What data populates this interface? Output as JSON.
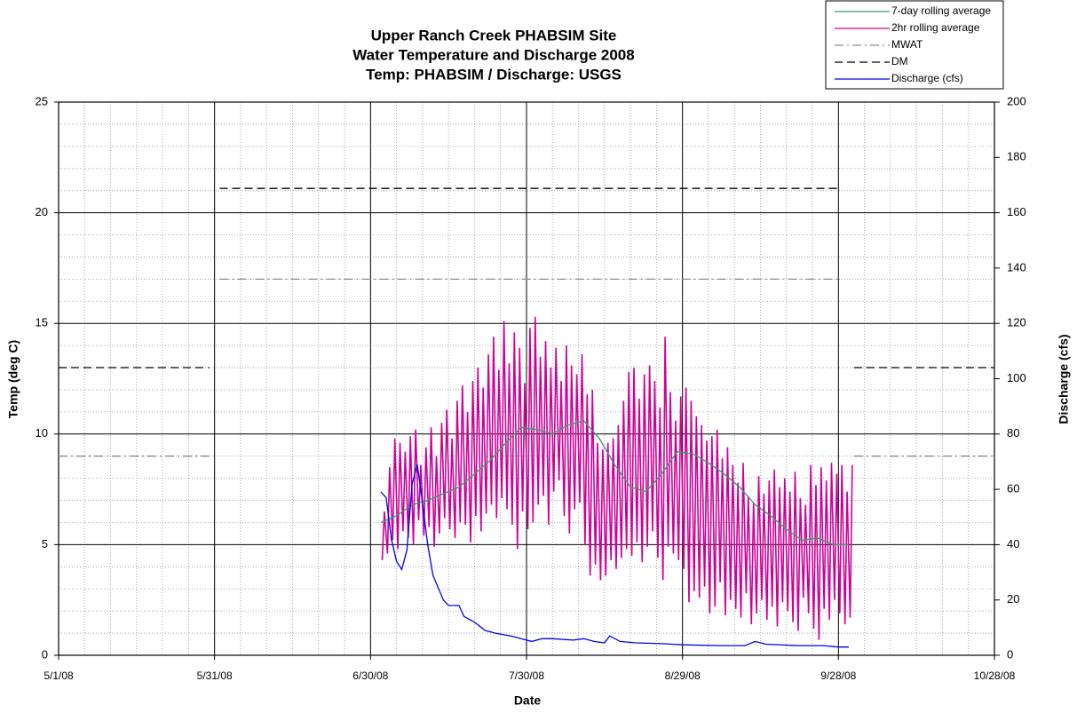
{
  "chart_data": {
    "type": "line",
    "title": [
      "Upper Ranch Creek PHABSIM Site",
      "Water Temperature and Discharge 2008",
      "Temp: PHABSIM / Discharge: USGS"
    ],
    "xlabel": "Date",
    "ylabel": "Temp (deg C)",
    "y2label": "Discharge (cfs)",
    "xlim": [
      "5/1/08",
      "10/28/08"
    ],
    "xticks": [
      "5/1/08",
      "5/31/08",
      "6/30/08",
      "7/30/08",
      "8/29/08",
      "9/28/08",
      "10/28/08"
    ],
    "ylim": [
      0,
      25
    ],
    "yticks": [
      0,
      5,
      10,
      15,
      20,
      25
    ],
    "y2lim": [
      0,
      200
    ],
    "y2ticks": [
      0,
      20,
      40,
      60,
      80,
      100,
      120,
      140,
      160,
      180,
      200
    ],
    "grid": true,
    "legend": "top-right",
    "series": [
      {
        "name": "7-day rolling average",
        "color": "#3a9a6a",
        "dash": "solid",
        "x": [
          "7/2/08",
          "7/5/08",
          "7/8/08",
          "7/11/08",
          "7/14/08",
          "7/17/08",
          "7/20/08",
          "7/23/08",
          "7/26/08",
          "7/29/08",
          "8/1/08",
          "8/4/08",
          "8/7/08",
          "8/10/08",
          "8/13/08",
          "8/16/08",
          "8/19/08",
          "8/22/08",
          "8/25/08",
          "8/28/08",
          "8/31/08",
          "9/3/08",
          "9/6/08",
          "9/9/08",
          "9/12/08",
          "9/15/08",
          "9/18/08",
          "9/21/08",
          "9/24/08",
          "9/27/08",
          "9/30/08"
        ],
        "values": [
          6.0,
          6.3,
          6.8,
          7.0,
          7.3,
          7.6,
          8.2,
          8.8,
          9.6,
          10.3,
          10.2,
          10.0,
          10.4,
          10.6,
          9.8,
          8.6,
          7.6,
          7.4,
          8.2,
          9.2,
          9.1,
          8.7,
          8.2,
          7.6,
          6.8,
          6.3,
          5.7,
          5.2,
          5.3,
          5.0,
          5.0
        ]
      },
      {
        "name": "2hr rolling average",
        "color": "#cc0099",
        "dash": "solid",
        "x": [
          "7/2/08 06:00",
          "7/2/08 16:00",
          "7/3/08 06:00",
          "7/3/08 16:00",
          "7/4/08 06:00",
          "7/4/08 16:00",
          "7/5/08 06:00",
          "7/5/08 16:00",
          "7/6/08 06:00",
          "7/6/08 16:00",
          "7/7/08 06:00",
          "7/7/08 16:00",
          "7/8/08 06:00",
          "7/8/08 16:00",
          "7/9/08 06:00",
          "7/9/08 16:00",
          "7/10/08 06:00",
          "7/10/08 16:00",
          "7/11/08 06:00",
          "7/11/08 16:00",
          "7/12/08 06:00",
          "7/12/08 16:00",
          "7/13/08 06:00",
          "7/13/08 16:00",
          "7/14/08 06:00",
          "7/14/08 16:00",
          "7/15/08 06:00",
          "7/15/08 16:00",
          "7/16/08 06:00",
          "7/16/08 16:00",
          "7/17/08 06:00",
          "7/17/08 16:00",
          "7/18/08 06:00",
          "7/18/08 16:00",
          "7/19/08 06:00",
          "7/19/08 16:00",
          "7/20/08 06:00",
          "7/20/08 16:00",
          "7/21/08 06:00",
          "7/21/08 16:00",
          "7/22/08 06:00",
          "7/22/08 16:00",
          "7/23/08 06:00",
          "7/23/08 16:00",
          "7/24/08 06:00",
          "7/24/08 16:00",
          "7/25/08 06:00",
          "7/25/08 16:00",
          "7/26/08 06:00",
          "7/26/08 16:00",
          "7/27/08 06:00",
          "7/27/08 16:00",
          "7/28/08 06:00",
          "7/28/08 16:00",
          "7/29/08 06:00",
          "7/29/08 16:00",
          "7/30/08 06:00",
          "7/30/08 16:00",
          "7/31/08 06:00",
          "7/31/08 16:00",
          "8/1/08 06:00",
          "8/1/08 16:00",
          "8/2/08 06:00",
          "8/2/08 16:00",
          "8/3/08 06:00",
          "8/3/08 16:00",
          "8/4/08 06:00",
          "8/4/08 16:00",
          "8/5/08 06:00",
          "8/5/08 16:00",
          "8/6/08 06:00",
          "8/6/08 16:00",
          "8/7/08 06:00",
          "8/7/08 16:00",
          "8/8/08 06:00",
          "8/8/08 16:00",
          "8/9/08 06:00",
          "8/9/08 16:00",
          "8/10/08 06:00",
          "8/10/08 16:00",
          "8/11/08 06:00",
          "8/11/08 16:00",
          "8/12/08 06:00",
          "8/12/08 16:00",
          "8/13/08 06:00",
          "8/13/08 16:00",
          "8/14/08 06:00",
          "8/14/08 16:00",
          "8/15/08 06:00",
          "8/15/08 16:00",
          "8/16/08 06:00",
          "8/16/08 16:00",
          "8/17/08 06:00",
          "8/17/08 16:00",
          "8/18/08 06:00",
          "8/18/08 16:00",
          "8/19/08 06:00",
          "8/19/08 16:00",
          "8/20/08 06:00",
          "8/20/08 16:00",
          "8/21/08 06:00",
          "8/21/08 16:00",
          "8/22/08 06:00",
          "8/22/08 16:00",
          "8/23/08 06:00",
          "8/23/08 16:00",
          "8/24/08 06:00",
          "8/24/08 16:00",
          "8/25/08 06:00",
          "8/25/08 16:00",
          "8/26/08 06:00",
          "8/26/08 16:00",
          "8/27/08 06:00",
          "8/27/08 16:00",
          "8/28/08 06:00",
          "8/28/08 16:00",
          "8/29/08 06:00",
          "8/29/08 16:00",
          "8/30/08 06:00",
          "8/30/08 16:00",
          "8/31/08 06:00",
          "8/31/08 16:00",
          "9/1/08 06:00",
          "9/1/08 16:00",
          "9/2/08 06:00",
          "9/2/08 16:00",
          "9/3/08 06:00",
          "9/3/08 16:00",
          "9/4/08 06:00",
          "9/4/08 16:00",
          "9/5/08 06:00",
          "9/5/08 16:00",
          "9/6/08 06:00",
          "9/6/08 16:00",
          "9/7/08 06:00",
          "9/7/08 16:00",
          "9/8/08 06:00",
          "9/8/08 16:00",
          "9/9/08 06:00",
          "9/9/08 16:00",
          "9/10/08 06:00",
          "9/10/08 16:00",
          "9/11/08 06:00",
          "9/11/08 16:00",
          "9/12/08 06:00",
          "9/12/08 16:00",
          "9/13/08 06:00",
          "9/13/08 16:00",
          "9/14/08 06:00",
          "9/14/08 16:00",
          "9/15/08 06:00",
          "9/15/08 16:00",
          "9/16/08 06:00",
          "9/16/08 16:00",
          "9/17/08 06:00",
          "9/17/08 16:00",
          "9/18/08 06:00",
          "9/18/08 16:00",
          "9/19/08 06:00",
          "9/19/08 16:00",
          "9/20/08 06:00",
          "9/20/08 16:00",
          "9/21/08 06:00",
          "9/21/08 16:00",
          "9/22/08 06:00",
          "9/22/08 16:00",
          "9/23/08 06:00",
          "9/23/08 16:00",
          "9/24/08 06:00",
          "9/24/08 16:00",
          "9/25/08 06:00",
          "9/25/08 16:00",
          "9/26/08 06:00",
          "9/26/08 16:00",
          "9/27/08 06:00",
          "9/27/08 16:00",
          "9/28/08 06:00",
          "9/28/08 16:00",
          "9/29/08 06:00",
          "9/29/08 16:00",
          "9/30/08 06:00",
          "9/30/08 16:00"
        ],
        "values": [
          4.3,
          6.5,
          4.6,
          8.5,
          5.2,
          9.8,
          4.8,
          9.6,
          5.6,
          9.2,
          5.3,
          9.9,
          5.0,
          10.2,
          6.1,
          8.6,
          5.4,
          9.4,
          5.8,
          10.3,
          4.9,
          9.0,
          5.5,
          10.5,
          6.2,
          11.1,
          5.7,
          9.8,
          5.3,
          11.5,
          6.0,
          12.2,
          5.9,
          11.0,
          5.1,
          12.4,
          6.3,
          13.0,
          5.6,
          12.1,
          6.4,
          13.6,
          6.8,
          14.4,
          6.2,
          12.9,
          7.1,
          15.1,
          6.6,
          13.2,
          5.9,
          14.6,
          4.8,
          13.9,
          6.5,
          12.3,
          5.7,
          14.8,
          6.0,
          15.3,
          6.8,
          13.5,
          7.2,
          14.2,
          5.9,
          13.0,
          7.4,
          13.9,
          7.9,
          12.4,
          6.3,
          14.0,
          5.5,
          13.1,
          6.6,
          12.7,
          6.9,
          13.6,
          5.0,
          11.8,
          3.6,
          12.0,
          4.1,
          9.6,
          3.4,
          9.3,
          3.6,
          9.6,
          4.3,
          9.8,
          3.9,
          10.4,
          4.4,
          11.5,
          4.8,
          12.8,
          4.5,
          13.0,
          5.1,
          11.6,
          4.2,
          12.7,
          4.9,
          13.1,
          5.6,
          12.4,
          4.4,
          11.2,
          3.4,
          14.4,
          4.9,
          11.9,
          4.6,
          10.6,
          4.3,
          11.7,
          3.9,
          12.1,
          2.4,
          11.5,
          2.9,
          10.8,
          2.6,
          10.4,
          3.1,
          9.7,
          1.9,
          9.9,
          2.2,
          10.2,
          3.3,
          8.9,
          1.8,
          9.4,
          2.5,
          8.6,
          2.1,
          7.8,
          1.7,
          8.7,
          2.8,
          7.2,
          1.4,
          6.9,
          1.9,
          8.1,
          2.5,
          7.3,
          1.6,
          7.9,
          2.2,
          8.4,
          1.3,
          7.6,
          2.4,
          8.0,
          2.0,
          7.4,
          1.5,
          8.3,
          1.1,
          7.1,
          2.6,
          6.8,
          1.9,
          8.6,
          1.2,
          7.7,
          0.7,
          8.5,
          2.1,
          7.9,
          1.6,
          8.7,
          2.5,
          8.2,
          1.9,
          8.6,
          1.4,
          7.4,
          1.7,
          8.6
        ]
      },
      {
        "name": "MWAT",
        "color": "#8c8c8c",
        "dash": "dashdot",
        "x": [
          "5/1/08",
          "5/30/08",
          "5/31/08",
          "6/1/08",
          "9/28/08",
          "9/29/08",
          "10/1/08",
          "10/28/08"
        ],
        "values": [
          9,
          9,
          null,
          17,
          17,
          null,
          9,
          9
        ]
      },
      {
        "name": "DM",
        "color": "#000000",
        "dash": "dash",
        "x": [
          "5/1/08",
          "5/30/08",
          "5/31/08",
          "6/1/08",
          "9/28/08",
          "9/29/08",
          "10/1/08",
          "10/28/08"
        ],
        "values": [
          13,
          13,
          null,
          21.1,
          21.1,
          null,
          13,
          13
        ]
      },
      {
        "name": "Discharge (cfs)",
        "color": "#0000ee",
        "dash": "solid",
        "axis": "y2",
        "x": [
          "7/2/08",
          "7/3/08",
          "7/4/08",
          "7/5/08",
          "7/6/08",
          "7/7/08",
          "7/8/08",
          "7/9/08",
          "7/10/08",
          "7/11/08",
          "7/12/08",
          "7/14/08",
          "7/15/08",
          "7/17/08",
          "7/18/08",
          "7/20/08",
          "7/22/08",
          "7/24/08",
          "7/27/08",
          "7/30/08",
          "7/31/08",
          "8/2/08",
          "8/4/08",
          "8/8/08",
          "8/10/08",
          "8/12/08",
          "8/14/08",
          "8/15/08",
          "8/17/08",
          "8/20/08",
          "8/25/08",
          "8/29/08",
          "9/5/08",
          "9/10/08",
          "9/12/08",
          "9/14/08",
          "9/20/08",
          "9/25/08",
          "9/28/08",
          "9/30/08"
        ],
        "values": [
          59,
          57,
          42,
          34,
          31,
          38,
          62,
          69,
          55,
          40,
          29,
          20,
          18,
          18,
          14,
          12,
          9,
          8,
          7,
          5.5,
          5,
          6,
          6,
          5.5,
          6,
          5,
          4.5,
          7,
          5,
          4.5,
          4.2,
          3.8,
          3.5,
          3.5,
          5,
          4,
          3.5,
          3.5,
          3,
          3
        ]
      }
    ]
  }
}
